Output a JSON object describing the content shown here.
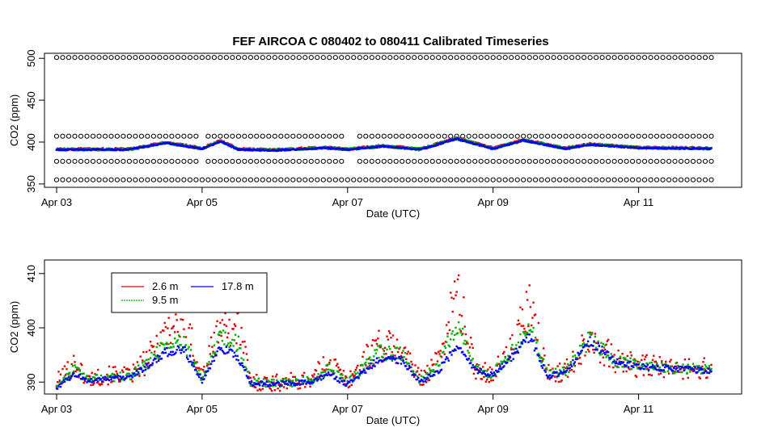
{
  "chart_data": [
    {
      "type": "scatter",
      "title": "FEF   AIRCOA  C    080402  to  080411   Calibrated Timeseries",
      "xlabel": "Date (UTC)",
      "ylabel": "CO2 (ppm)",
      "x_ticks": [
        "Apr 03",
        "Apr 05",
        "Apr 07",
        "Apr 09",
        "Apr 11"
      ],
      "y_ticks": [
        350,
        400,
        450,
        500
      ],
      "xlim": [
        "2008-04-02T20:00",
        "2008-04-12T10:00"
      ],
      "ylim": [
        346,
        506
      ],
      "grid": false,
      "legend": "none",
      "colors": {
        "2.6 m": "#e00000",
        "9.5 m": "#00b000",
        "17.8 m": "#0000ff",
        "calibration": "#000000"
      },
      "calibration_levels_ppm": [
        355,
        377,
        407,
        501
      ],
      "series": [
        {
          "values": [
            {
              "x": "2008-04-03T00:00",
              "y": 391
            },
            {
              "x": "2008-04-04T00:00",
              "y": 391
            },
            {
              "x": "2008-04-04T12:00",
              "y": 399
            },
            {
              "x": "2008-04-05T00:00",
              "y": 392
            },
            {
              "x": "2008-04-05T06:00",
              "y": 401
            },
            {
              "x": "2008-04-05T12:00",
              "y": 391
            },
            {
              "x": "2008-04-06T00:00",
              "y": 390
            },
            {
              "x": "2008-04-06T16:00",
              "y": 393
            },
            {
              "x": "2008-04-07T00:00",
              "y": 391
            },
            {
              "x": "2008-04-07T12:00",
              "y": 395
            },
            {
              "x": "2008-04-08T00:00",
              "y": 391
            },
            {
              "x": "2008-04-08T12:00",
              "y": 404
            },
            {
              "x": "2008-04-09T00:00",
              "y": 392
            },
            {
              "x": "2008-04-09T10:00",
              "y": 402
            },
            {
              "x": "2008-04-10T00:00",
              "y": 392
            },
            {
              "x": "2008-04-10T08:00",
              "y": 397
            },
            {
              "x": "2008-04-11T00:00",
              "y": 393
            },
            {
              "x": "2008-04-12T00:00",
              "y": 392
            }
          ]
        }
      ]
    },
    {
      "type": "scatter",
      "title": "",
      "xlabel": "Date (UTC)",
      "ylabel": "CO2 (ppm)",
      "x_ticks": [
        "Apr 03",
        "Apr 05",
        "Apr 07",
        "Apr 09",
        "Apr 11"
      ],
      "y_ticks": [
        390,
        400,
        410
      ],
      "xlim": [
        "2008-04-02T20:00",
        "2008-04-12T10:00"
      ],
      "ylim": [
        387.8,
        412.5
      ],
      "grid": false,
      "legend": "top-left",
      "series": [
        {
          "name": "2.6 m",
          "color": "#e00000",
          "values": [
            {
              "x": "2008-04-03T00:00",
              "y": 390
            },
            {
              "x": "2008-04-03T06:00",
              "y": 393.5
            },
            {
              "x": "2008-04-03T10:00",
              "y": 390.5
            },
            {
              "x": "2008-04-03T20:00",
              "y": 391.5
            },
            {
              "x": "2008-04-04T00:00",
              "y": 391
            },
            {
              "x": "2008-04-04T06:00",
              "y": 394
            },
            {
              "x": "2008-04-04T12:00",
              "y": 399.5
            },
            {
              "x": "2008-04-04T18:00",
              "y": 402
            },
            {
              "x": "2008-04-05T00:00",
              "y": 391
            },
            {
              "x": "2008-04-05T06:00",
              "y": 400.5
            },
            {
              "x": "2008-04-05T12:00",
              "y": 401
            },
            {
              "x": "2008-04-05T16:00",
              "y": 390
            },
            {
              "x": "2008-04-06T00:00",
              "y": 389.8
            },
            {
              "x": "2008-04-06T12:00",
              "y": 390.5
            },
            {
              "x": "2008-04-06T18:00",
              "y": 394
            },
            {
              "x": "2008-04-07T00:00",
              "y": 390
            },
            {
              "x": "2008-04-07T10:00",
              "y": 397
            },
            {
              "x": "2008-04-07T18:00",
              "y": 396
            },
            {
              "x": "2008-04-08T00:00",
              "y": 390.5
            },
            {
              "x": "2008-04-08T06:00",
              "y": 394
            },
            {
              "x": "2008-04-08T12:00",
              "y": 407
            },
            {
              "x": "2008-04-08T18:00",
              "y": 392.5
            },
            {
              "x": "2008-04-09T00:00",
              "y": 391.5
            },
            {
              "x": "2008-04-09T06:00",
              "y": 396
            },
            {
              "x": "2008-04-09T12:00",
              "y": 404
            },
            {
              "x": "2008-04-09T18:00",
              "y": 391.5
            },
            {
              "x": "2008-04-10T00:00",
              "y": 392
            },
            {
              "x": "2008-04-10T08:00",
              "y": 398.5
            },
            {
              "x": "2008-04-10T16:00",
              "y": 394
            },
            {
              "x": "2008-04-11T00:00",
              "y": 393
            },
            {
              "x": "2008-04-11T12:00",
              "y": 392.5
            },
            {
              "x": "2008-04-12T00:00",
              "y": 392.5
            }
          ]
        },
        {
          "name": "9.5 m",
          "color": "#00b000",
          "values": [
            {
              "x": "2008-04-03T00:00",
              "y": 389.5
            },
            {
              "x": "2008-04-03T06:00",
              "y": 392.5
            },
            {
              "x": "2008-04-03T10:00",
              "y": 390.5
            },
            {
              "x": "2008-04-03T20:00",
              "y": 391
            },
            {
              "x": "2008-04-04T00:00",
              "y": 391
            },
            {
              "x": "2008-04-04T06:00",
              "y": 393.5
            },
            {
              "x": "2008-04-04T12:00",
              "y": 397
            },
            {
              "x": "2008-04-04T18:00",
              "y": 397.5
            },
            {
              "x": "2008-04-05T00:00",
              "y": 390.5
            },
            {
              "x": "2008-04-05T06:00",
              "y": 398
            },
            {
              "x": "2008-04-05T12:00",
              "y": 397
            },
            {
              "x": "2008-04-05T16:00",
              "y": 390
            },
            {
              "x": "2008-04-06T00:00",
              "y": 389.7
            },
            {
              "x": "2008-04-06T12:00",
              "y": 390.3
            },
            {
              "x": "2008-04-06T18:00",
              "y": 392.5
            },
            {
              "x": "2008-04-07T00:00",
              "y": 389.8
            },
            {
              "x": "2008-04-07T10:00",
              "y": 395.5
            },
            {
              "x": "2008-04-07T18:00",
              "y": 395
            },
            {
              "x": "2008-04-08T00:00",
              "y": 390.3
            },
            {
              "x": "2008-04-08T06:00",
              "y": 393
            },
            {
              "x": "2008-04-08T12:00",
              "y": 401
            },
            {
              "x": "2008-04-08T18:00",
              "y": 392.5
            },
            {
              "x": "2008-04-09T00:00",
              "y": 391.5
            },
            {
              "x": "2008-04-09T06:00",
              "y": 395.5
            },
            {
              "x": "2008-04-09T12:00",
              "y": 400.5
            },
            {
              "x": "2008-04-09T18:00",
              "y": 391.3
            },
            {
              "x": "2008-04-10T00:00",
              "y": 392
            },
            {
              "x": "2008-04-10T08:00",
              "y": 398
            },
            {
              "x": "2008-04-10T16:00",
              "y": 394
            },
            {
              "x": "2008-04-11T00:00",
              "y": 393
            },
            {
              "x": "2008-04-11T12:00",
              "y": 392.5
            },
            {
              "x": "2008-04-12T00:00",
              "y": 392.3
            }
          ]
        },
        {
          "name": "17.8 m",
          "color": "#0000ff",
          "values": [
            {
              "x": "2008-04-03T00:00",
              "y": 389
            },
            {
              "x": "2008-04-03T06:00",
              "y": 391.5
            },
            {
              "x": "2008-04-03T10:00",
              "y": 390.3
            },
            {
              "x": "2008-04-03T20:00",
              "y": 390.8
            },
            {
              "x": "2008-04-04T00:00",
              "y": 390.8
            },
            {
              "x": "2008-04-04T06:00",
              "y": 393
            },
            {
              "x": "2008-04-04T12:00",
              "y": 395.5
            },
            {
              "x": "2008-04-04T18:00",
              "y": 396
            },
            {
              "x": "2008-04-05T00:00",
              "y": 390.3
            },
            {
              "x": "2008-04-05T06:00",
              "y": 396.5
            },
            {
              "x": "2008-04-05T12:00",
              "y": 394.5
            },
            {
              "x": "2008-04-05T16:00",
              "y": 389.8
            },
            {
              "x": "2008-04-06T00:00",
              "y": 389.6
            },
            {
              "x": "2008-04-06T12:00",
              "y": 390
            },
            {
              "x": "2008-04-06T18:00",
              "y": 391.5
            },
            {
              "x": "2008-04-07T00:00",
              "y": 389.5
            },
            {
              "x": "2008-04-07T10:00",
              "y": 394
            },
            {
              "x": "2008-04-07T18:00",
              "y": 394
            },
            {
              "x": "2008-04-08T00:00",
              "y": 390
            },
            {
              "x": "2008-04-08T06:00",
              "y": 392
            },
            {
              "x": "2008-04-08T12:00",
              "y": 396.5
            },
            {
              "x": "2008-04-08T18:00",
              "y": 392.3
            },
            {
              "x": "2008-04-09T00:00",
              "y": 391.3
            },
            {
              "x": "2008-04-09T06:00",
              "y": 394.5
            },
            {
              "x": "2008-04-09T12:00",
              "y": 398.5
            },
            {
              "x": "2008-04-09T18:00",
              "y": 391
            },
            {
              "x": "2008-04-10T00:00",
              "y": 391.8
            },
            {
              "x": "2008-04-10T08:00",
              "y": 397.5
            },
            {
              "x": "2008-04-10T16:00",
              "y": 394
            },
            {
              "x": "2008-04-11T00:00",
              "y": 392.8
            },
            {
              "x": "2008-04-11T12:00",
              "y": 392.5
            },
            {
              "x": "2008-04-12T00:00",
              "y": 392
            }
          ]
        }
      ]
    }
  ]
}
